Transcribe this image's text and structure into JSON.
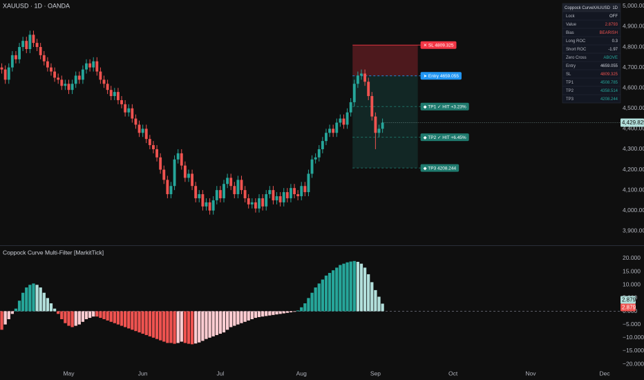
{
  "header": {
    "symbol": "XAUUSD · 1D · OANDA"
  },
  "table": {
    "header": [
      "Coppock Curve",
      "XAUUSD",
      "1D"
    ],
    "rows": [
      {
        "label": "Lock",
        "value": "OFF",
        "color": "#d1d4dc"
      },
      {
        "label": "Value",
        "value": "2.8793",
        "color": "#ef5350"
      },
      {
        "label": "Bias",
        "value": "BEARISH",
        "color": "#ef5350"
      },
      {
        "label": "Long ROC",
        "value": "0.3",
        "color": "#d1d4dc"
      },
      {
        "label": "Short ROC",
        "value": "-1.97",
        "color": "#d1d4dc"
      },
      {
        "label": "Zero Cross",
        "value": "ABOVE",
        "color": "#26a69a"
      },
      {
        "label": "Entry",
        "value": "4659.055",
        "color": "#d1d4dc"
      },
      {
        "label": "SL",
        "value": "4809.325",
        "color": "#ef5350"
      },
      {
        "label": "TP1",
        "value": "4508.785",
        "color": "#26a69a"
      },
      {
        "label": "TP2",
        "value": "4358.514",
        "color": "#26a69a"
      },
      {
        "label": "TP3",
        "value": "4208.244",
        "color": "#26a69a"
      }
    ]
  },
  "chart_data": [
    {
      "type": "candlestick",
      "up_color": "#26a69a",
      "down_color": "#ef5350",
      "xlim": [
        -0.5,
        175.5
      ],
      "xticks": [
        {
          "value": 19,
          "label": "May"
        },
        {
          "value": 40,
          "label": "Jun"
        },
        {
          "value": 62,
          "label": "Jul"
        },
        {
          "value": 85,
          "label": "Aug"
        },
        {
          "value": 106,
          "label": "Sep"
        },
        {
          "value": 128,
          "label": "Oct"
        },
        {
          "value": 150,
          "label": "Nov"
        },
        {
          "value": 171,
          "label": "Dec"
        }
      ],
      "ylim": [
        3830,
        5030
      ],
      "yticks": [
        {
          "value": 5000,
          "label": "5,000.000"
        },
        {
          "value": 4900,
          "label": "4,900.000"
        },
        {
          "value": 4800,
          "label": "4,800.000"
        },
        {
          "value": 4700,
          "label": "4,700.000"
        },
        {
          "value": 4600,
          "label": "4,600.000"
        },
        {
          "value": 4500,
          "label": "4,500.000"
        },
        {
          "value": 4400,
          "label": "4,400.000"
        },
        {
          "value": 4300,
          "label": "4,300.000"
        },
        {
          "value": 4200,
          "label": "4,200.000"
        },
        {
          "value": 4100,
          "label": "4,100.000"
        },
        {
          "value": 4000,
          "label": "4,000.000"
        },
        {
          "value": 3900,
          "label": "3,900.000"
        }
      ],
      "last": {
        "value": 4429.825,
        "label": "4,429.825"
      },
      "open": [
        4700,
        4690,
        4640,
        4700,
        4760,
        4740,
        4800,
        4830,
        4790,
        4860,
        4820,
        4800,
        4760,
        4730,
        4700,
        4680,
        4650,
        4640,
        4610,
        4620,
        4590,
        4620,
        4660,
        4640,
        4690,
        4720,
        4700,
        4730,
        4680,
        4640,
        4620,
        4590,
        4560,
        4580,
        4540,
        4520,
        4480,
        4500,
        4450,
        4420,
        4380,
        4400,
        4350,
        4320,
        4300,
        4260,
        4200,
        4150,
        4080,
        4120,
        4250,
        4280,
        4220,
        4160,
        4180,
        4120,
        4060,
        4080,
        4020,
        4040,
        4000,
        4050,
        4100,
        4060,
        4130,
        4160,
        4120,
        4080,
        4150,
        4100,
        4060,
        4030,
        4040,
        4010,
        4060,
        4020,
        4080,
        4100,
        4050,
        4070,
        4040,
        4090,
        4060,
        4110,
        4080,
        4070,
        4120,
        4090,
        4180,
        4250,
        4260,
        4300,
        4340,
        4380,
        4400,
        4380,
        4430,
        4450,
        4420,
        4480,
        4530,
        4620,
        4660,
        4670,
        4630,
        4560,
        4460,
        4380,
        4400
      ],
      "high": [
        4720,
        4710,
        4720,
        4780,
        4780,
        4820,
        4850,
        4850,
        4880,
        4880,
        4840,
        4820,
        4780,
        4750,
        4720,
        4700,
        4670,
        4660,
        4640,
        4640,
        4640,
        4680,
        4680,
        4710,
        4740,
        4740,
        4750,
        4750,
        4700,
        4660,
        4640,
        4610,
        4600,
        4600,
        4560,
        4540,
        4520,
        4520,
        4470,
        4440,
        4420,
        4420,
        4370,
        4340,
        4320,
        4280,
        4220,
        4170,
        4140,
        4270,
        4300,
        4300,
        4240,
        4200,
        4200,
        4140,
        4100,
        4100,
        4060,
        4060,
        4070,
        4120,
        4120,
        4150,
        4180,
        4180,
        4140,
        4170,
        4170,
        4120,
        4080,
        4060,
        4060,
        4080,
        4080,
        4100,
        4120,
        4120,
        4090,
        4090,
        4110,
        4110,
        4130,
        4130,
        4100,
        4140,
        4140,
        4200,
        4270,
        4280,
        4320,
        4360,
        4400,
        4420,
        4420,
        4450,
        4470,
        4470,
        4500,
        4550,
        4640,
        4680,
        4690,
        4690,
        4650,
        4580,
        4480,
        4420,
        4450
      ],
      "low": [
        4670,
        4620,
        4620,
        4680,
        4720,
        4720,
        4780,
        4770,
        4770,
        4800,
        4780,
        4740,
        4710,
        4680,
        4660,
        4630,
        4620,
        4590,
        4590,
        4570,
        4570,
        4600,
        4620,
        4620,
        4670,
        4680,
        4680,
        4660,
        4620,
        4600,
        4570,
        4540,
        4540,
        4520,
        4500,
        4460,
        4460,
        4430,
        4400,
        4360,
        4360,
        4330,
        4300,
        4280,
        4240,
        4180,
        4130,
        4060,
        4060,
        4100,
        4230,
        4200,
        4140,
        4140,
        4100,
        4040,
        4040,
        4000,
        4000,
        3980,
        3980,
        4030,
        4040,
        4040,
        4110,
        4100,
        4060,
        4060,
        4080,
        4040,
        4010,
        4010,
        3990,
        3990,
        4000,
        4000,
        4060,
        4030,
        4030,
        4020,
        4020,
        4040,
        4040,
        4060,
        4050,
        4050,
        4070,
        4070,
        4160,
        4230,
        4240,
        4280,
        4320,
        4360,
        4360,
        4360,
        4410,
        4400,
        4400,
        4460,
        4510,
        4600,
        4640,
        4610,
        4540,
        4440,
        4300,
        4360,
        4380
      ],
      "close": [
        4690,
        4640,
        4700,
        4760,
        4740,
        4800,
        4830,
        4790,
        4860,
        4820,
        4800,
        4760,
        4730,
        4700,
        4680,
        4650,
        4640,
        4610,
        4620,
        4590,
        4620,
        4660,
        4640,
        4690,
        4720,
        4700,
        4730,
        4680,
        4640,
        4620,
        4590,
        4560,
        4580,
        4540,
        4520,
        4480,
        4500,
        4450,
        4420,
        4380,
        4400,
        4350,
        4320,
        4300,
        4260,
        4200,
        4150,
        4080,
        4120,
        4250,
        4280,
        4220,
        4160,
        4180,
        4120,
        4060,
        4080,
        4020,
        4040,
        4000,
        4050,
        4100,
        4060,
        4130,
        4160,
        4120,
        4080,
        4150,
        4100,
        4060,
        4030,
        4040,
        4010,
        4060,
        4020,
        4080,
        4100,
        4050,
        4070,
        4040,
        4090,
        4060,
        4110,
        4080,
        4070,
        4120,
        4090,
        4180,
        4250,
        4260,
        4300,
        4340,
        4380,
        4400,
        4380,
        4430,
        4450,
        4420,
        4480,
        4530,
        4620,
        4660,
        4670,
        4630,
        4560,
        4460,
        4380,
        4400,
        4429.825
      ],
      "trade": {
        "bars": [
          100,
          118
        ],
        "levels": [
          {
            "name": "sl",
            "label": "✕ SL 4809.325",
            "value": 4809.325,
            "color": "#f23645"
          },
          {
            "name": "entry",
            "label": "➤ Entry 4659.055",
            "value": 4659.055,
            "color": "#2196f3"
          },
          {
            "name": "tp1",
            "label": "◆ TP1 ✓ HIT +3.23%",
            "value": 4508.785,
            "color": "#1f7a6e"
          },
          {
            "name": "tp2",
            "label": "◆ TP2 ✓ HIT +6.45%",
            "value": 4358.514,
            "color": "#1f7a6e"
          },
          {
            "name": "tp3",
            "label": "◆ TP3 4208.244",
            "value": 4208.244,
            "color": "#1f7a6e"
          }
        ]
      }
    },
    {
      "type": "histogram",
      "title": "Coppock Curve Multi-Filter [MarkitTick]",
      "colors": {
        "pos_rise": "#26a69a",
        "pos_fall": "#b2dfdb",
        "neg_fall": "#ef5350",
        "neg_rise": "#ffcdd2"
      },
      "ylim": [
        -21.3,
        24.7
      ],
      "yticks": [
        {
          "value": 20,
          "label": "20.000"
        },
        {
          "value": 15,
          "label": "15.000"
        },
        {
          "value": 10,
          "label": "10.000"
        },
        {
          "value": 5,
          "label": "5.000"
        },
        {
          "value": 0,
          "label": "0.000"
        },
        {
          "value": -5,
          "label": "−5.000"
        },
        {
          "value": -10,
          "label": "−10.000"
        },
        {
          "value": -15,
          "label": "−15.000"
        },
        {
          "value": -20,
          "label": "−20.000"
        }
      ],
      "tags": [
        {
          "value": 2.879,
          "label": "2.879",
          "color": "#b2dfdb"
        },
        {
          "value": 2.879,
          "label": "2.879",
          "color": "#ef5350"
        }
      ],
      "values": [
        -7,
        -5,
        -3,
        -1,
        1,
        4,
        7,
        9,
        10,
        10.5,
        10,
        9,
        7,
        5,
        3,
        1,
        -1,
        -3,
        -4.5,
        -5.5,
        -6,
        -5.5,
        -5,
        -4,
        -3,
        -2.5,
        -2,
        -2,
        -2.5,
        -3,
        -3.5,
        -4,
        -4.5,
        -5,
        -5.5,
        -6,
        -6.5,
        -7,
        -7.5,
        -8,
        -8.5,
        -9,
        -9.5,
        -10,
        -10.5,
        -11,
        -11.5,
        -12,
        -12,
        -12.3,
        -12,
        -11.5,
        -12,
        -12.3,
        -12.5,
        -12.2,
        -11.8,
        -11.2,
        -10.5,
        -10,
        -9.5,
        -9,
        -8.5,
        -8,
        -7,
        -6,
        -5.5,
        -5,
        -4.5,
        -4,
        -3.5,
        -3,
        -2.5,
        -2.2,
        -2,
        -1.8,
        -1.6,
        -1.4,
        -1.2,
        -1,
        -0.8,
        -0.6,
        -0.4,
        -0.2,
        0.3,
        1.5,
        3,
        5,
        7,
        9,
        10.5,
        12,
        13.5,
        14.5,
        15.5,
        16.5,
        17.5,
        18,
        18.5,
        18.8,
        19,
        18.7,
        18,
        16.5,
        14,
        11,
        8,
        5.5,
        2.879
      ]
    }
  ]
}
